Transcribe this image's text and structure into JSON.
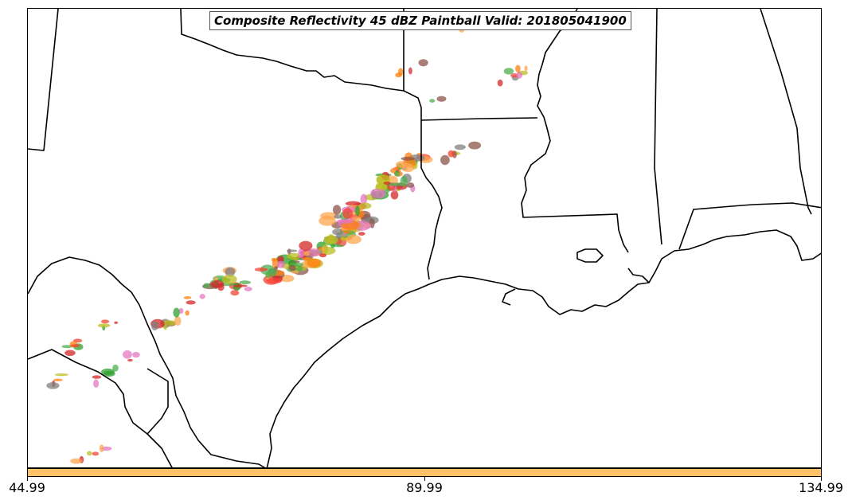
{
  "title": "Composite Reflectivity 45 dBZ Paintball Valid: 201805041900",
  "colorbar": {
    "color": "#ffc266",
    "ticks": [
      "44.99",
      "89.99",
      "134.99"
    ]
  },
  "paintball_colors": [
    "#d62728",
    "#ff7f0e",
    "#2ca02c",
    "#8c564b",
    "#bcbd22",
    "#7f7f7f",
    "#4caf50",
    "#e377c2",
    "#ffa64d",
    "#f44336"
  ]
}
